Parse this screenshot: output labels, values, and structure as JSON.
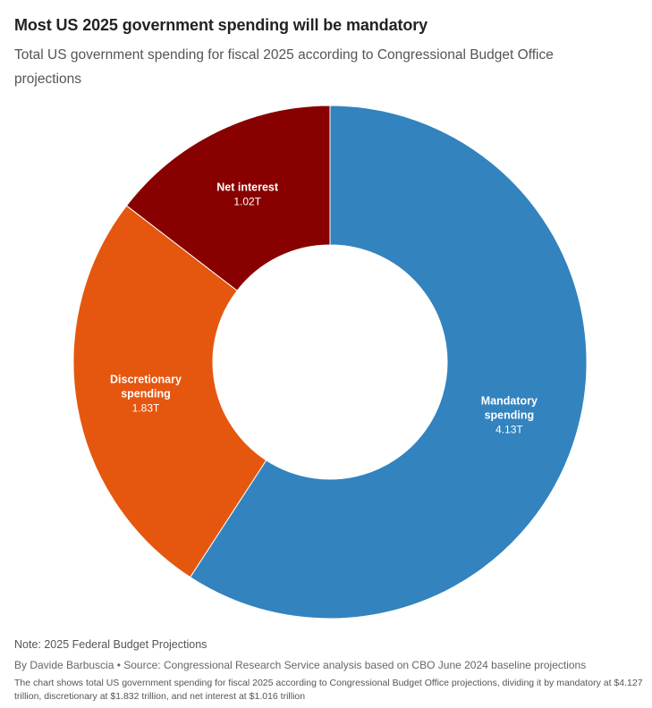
{
  "header": {
    "title": "Most US 2025 government spending will be mandatory",
    "subtitle": "Total US government spending for fiscal 2025 according to Congressional Budget Office projections"
  },
  "chart_data": {
    "type": "pie",
    "donut": true,
    "title": "Most US 2025 government spending will be mandatory",
    "subtitle": "Total US government spending for fiscal 2025 according to Congressional Budget Office projections",
    "unit": "trillion USD",
    "slices": [
      {
        "label_lines": [
          "Mandatory",
          "spending"
        ],
        "value": 4.127,
        "value_label": "4.13T",
        "color": "#3283be"
      },
      {
        "label_lines": [
          "Discretionary",
          "spending"
        ],
        "value": 1.832,
        "value_label": "1.83T",
        "color": "#e5560f"
      },
      {
        "label_lines": [
          "Net interest"
        ],
        "value": 1.016,
        "value_label": "1.02T",
        "color": "#880000"
      }
    ],
    "start": "12 o'clock",
    "direction": "clockwise"
  },
  "footer": {
    "note": "Note: 2025 Federal Budget Projections",
    "byline": "By Davide Barbuscia • Source: Congressional Research Service analysis based on CBO June 2024 baseline projections",
    "description": "The chart shows total US government spending for fiscal 2025 according to Congressional Budget Office projections, dividing it by mandatory at $4.127 trillion, discretionary at $1.832 trillion, and net interest at $1.016 trillion"
  }
}
